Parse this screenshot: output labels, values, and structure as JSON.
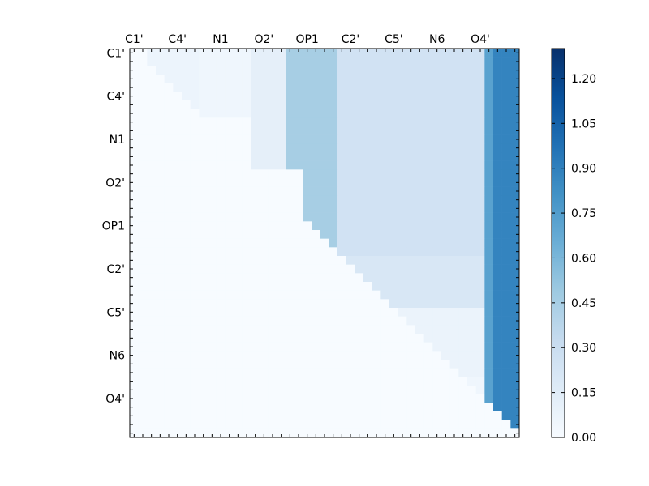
{
  "chart_data": {
    "type": "heatmap",
    "title": "",
    "xlabel": "",
    "ylabel": "",
    "x_tick_labels": [
      "C1'",
      "C4'",
      "N1",
      "O2'",
      "OP1",
      "C2'",
      "C5'",
      "N6",
      "O4'"
    ],
    "y_tick_labels": [
      "C1'",
      "C4'",
      "N1",
      "O2'",
      "OP1",
      "C2'",
      "C5'",
      "N6",
      "O4'"
    ],
    "tick_label_positions": [
      0.5,
      5.5,
      10.5,
      15.5,
      20.5,
      25.5,
      30.5,
      35.5,
      40.5
    ],
    "n_rows": 45,
    "n_cols": 45,
    "matrix_type": "upper-triangular",
    "colormap": "Blues",
    "color_scale": {
      "min": 0.0,
      "max": 1.3,
      "ticks": [
        0.0,
        0.15,
        0.3,
        0.45,
        0.6,
        0.75,
        0.9,
        1.05,
        1.2
      ],
      "tick_labels": [
        "0.00",
        "0.15",
        "0.30",
        "0.45",
        "0.60",
        "0.75",
        "0.90",
        "1.05",
        "1.20"
      ]
    },
    "region_values": [
      {
        "rows": [
          0,
          8
        ],
        "cols": [
          2,
          8
        ],
        "value": 0.07
      },
      {
        "rows": [
          0,
          8
        ],
        "cols": [
          8,
          14
        ],
        "value": 0.05
      },
      {
        "rows": [
          0,
          14
        ],
        "cols": [
          14,
          18
        ],
        "value": 0.12
      },
      {
        "rows": [
          0,
          14
        ],
        "cols": [
          18,
          20
        ],
        "value": 0.45
      },
      {
        "rows": [
          0,
          24
        ],
        "cols": [
          20,
          24
        ],
        "value": 0.45
      },
      {
        "rows": [
          0,
          24
        ],
        "cols": [
          24,
          43
        ],
        "value": 0.25
      },
      {
        "rows": [
          0,
          45
        ],
        "cols": [
          41,
          42
        ],
        "value": 0.72
      },
      {
        "rows": [
          0,
          45
        ],
        "cols": [
          42,
          45
        ],
        "value": 0.88
      },
      {
        "rows": [
          24,
          30
        ],
        "cols": [
          24,
          41
        ],
        "value": 0.2
      },
      {
        "rows": [
          30,
          38
        ],
        "cols": [
          30,
          41
        ],
        "value": 0.08
      },
      {
        "rows": [
          38,
          45
        ],
        "cols": [
          38,
          41
        ],
        "value": 0.05
      }
    ]
  },
  "colors": {
    "low": "#f7fbff",
    "mid": "#6baed6",
    "high": "#08306b"
  }
}
